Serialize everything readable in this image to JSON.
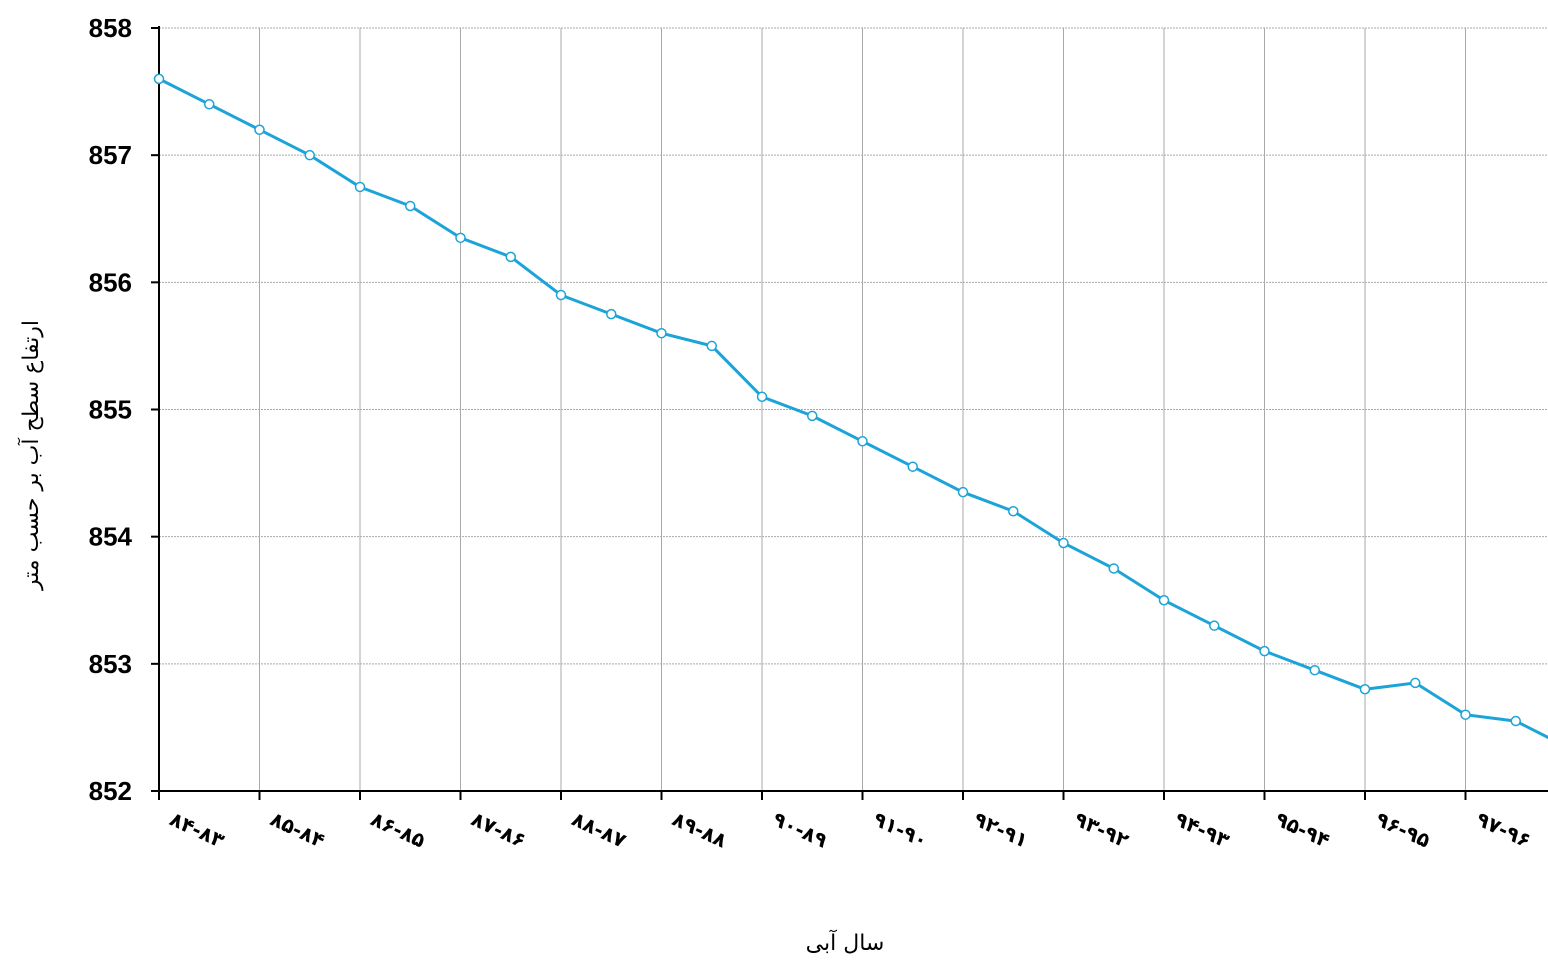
{
  "chart_data": {
    "type": "line",
    "title": "",
    "xlabel": "سال آبی",
    "ylabel": "ارتفاع سطح آب بر حسب متر",
    "ylim": [
      852,
      858
    ],
    "y_ticks": [
      "852",
      "853",
      "854",
      "855",
      "856",
      "857",
      "858"
    ],
    "x_ticks": [
      "۸۴-۸۳",
      "۸۵-۸۴",
      "۸۶-۸۵",
      "۸۷-۸۶",
      "۸۸-۸۷",
      "۸۹-۸۸",
      "۹۰-۸۹",
      "۹۱-۹۰",
      "۹۲-۹۱",
      "۹۳-۹۲",
      "۹۴-۹۳",
      "۹۵-۹۴",
      "۹۶-۹۵",
      "۹۷-۹۶"
    ],
    "x_unit": "month index from start of water year ۸۴-۸۳",
    "xlim": [
      0,
      168
    ],
    "grid": true,
    "colors": {
      "line": "#1ca3d8",
      "marker_edge": "#1ca3d8",
      "marker_fill": "#ffffff",
      "grid": "#a9a9a9",
      "axis": "#000000"
    },
    "series": [
      {
        "x": [
          0,
          6,
          12,
          18,
          24,
          30,
          36,
          42,
          48,
          54,
          60,
          66,
          72,
          78,
          84,
          90,
          96,
          102,
          108,
          114,
          120,
          126,
          132,
          138,
          144,
          150,
          156,
          162,
          168
        ],
        "values": [
          857.6,
          857.4,
          857.2,
          857.0,
          856.75,
          856.6,
          856.35,
          856.2,
          855.9,
          855.75,
          855.6,
          855.5,
          855.1,
          854.95,
          854.75,
          854.55,
          854.35,
          854.2,
          853.95,
          853.75,
          853.5,
          853.3,
          853.1,
          852.95,
          852.8,
          852.85,
          852.6,
          852.55,
          852.35
        ]
      }
    ]
  }
}
